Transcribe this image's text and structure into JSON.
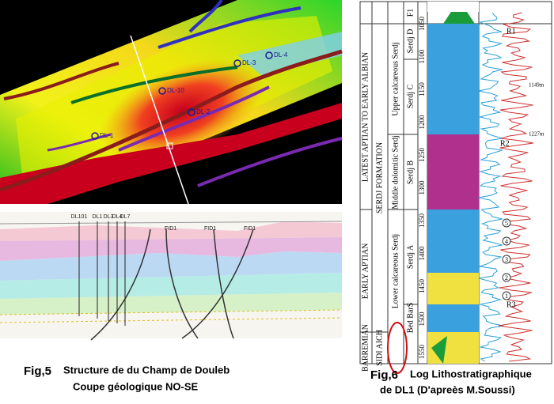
{
  "fig5": {
    "label": "Fig,5",
    "caption": [
      "Structure de du Champ de Douleb",
      "Coupe géologique NO-SE"
    ],
    "map_wells": [
      "DL-1",
      "DL-2",
      "DL-3",
      "DL-4",
      "DL-10"
    ],
    "section_wells": [
      "DL101",
      "DL1",
      "DL3",
      "DL4",
      "DL7"
    ],
    "faults": [
      "FID1",
      "FID1",
      "FID1"
    ]
  },
  "fig6": {
    "label": "Fig,6",
    "caption": [
      "Log Lithostratigraphique",
      "de DL1 (D'apreès M.Soussi)"
    ],
    "header": "F1",
    "stages": [
      "BARREMIAN",
      "EARLY APTIAN",
      "LATEST APTIAN TO EARLY ALBIAN"
    ],
    "formation": [
      "SIDI AICH",
      "SERDJ FORMATION"
    ],
    "members": [
      "Lower calcareous Serdj",
      "Middle dolomitic Serdj",
      "Upper calcareous Serdj"
    ],
    "submembers": [
      "Bed BarS",
      "Serdj A",
      "Serdj B",
      "Serdj C",
      "Serdj D"
    ],
    "depths": [
      1050,
      1100,
      1150,
      1200,
      1250,
      1300,
      1350,
      1400,
      1450,
      1500,
      1550
    ],
    "reservoirs": [
      "R1",
      "R2",
      "R3"
    ],
    "depth_marks": [
      "1149m",
      "1227m"
    ],
    "markers": [
      "5",
      "4",
      "3",
      "2",
      "1"
    ]
  }
}
